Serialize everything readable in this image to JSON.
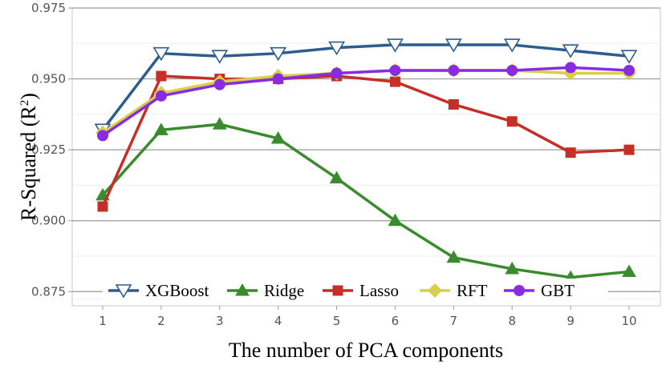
{
  "chart_data": {
    "type": "line",
    "title": "",
    "xlabel": "The number of PCA components",
    "ylabel_main": "R-Squared (R",
    "ylabel_sup": "2",
    "ylabel_close": ")",
    "x": [
      1,
      2,
      3,
      4,
      5,
      6,
      7,
      8,
      9,
      10
    ],
    "x_tick_labels": [
      "1",
      "2",
      "3",
      "4",
      "5",
      "6",
      "7",
      "8",
      "9",
      "10"
    ],
    "ylim": [
      0.87,
      0.975
    ],
    "y_ticks": [
      0.875,
      0.9,
      0.925,
      0.95,
      0.975
    ],
    "y_tick_labels": [
      "0.875",
      "0.900",
      "0.925",
      "0.950",
      "0.975"
    ],
    "grid": true,
    "legend_position": "bottom",
    "series": [
      {
        "name": "XGBoost",
        "color": "#2d5d8e",
        "marker": "triangle-down-open",
        "values": [
          0.932,
          0.959,
          0.958,
          0.959,
          0.961,
          0.962,
          0.962,
          0.962,
          0.96,
          0.958
        ]
      },
      {
        "name": "Ridge",
        "color": "#3a8a2e",
        "marker": "triangle-up",
        "values": [
          0.909,
          0.932,
          0.934,
          0.929,
          0.915,
          0.9,
          0.887,
          0.883,
          0.88,
          0.882
        ]
      },
      {
        "name": "Lasso",
        "color": "#c62f27",
        "marker": "square",
        "values": [
          0.905,
          0.951,
          0.95,
          0.95,
          0.951,
          0.949,
          0.941,
          0.935,
          0.924,
          0.925
        ]
      },
      {
        "name": "RFT",
        "color": "#d9cf48",
        "marker": "diamond",
        "values": [
          0.931,
          0.945,
          0.949,
          0.951,
          0.952,
          0.953,
          0.953,
          0.953,
          0.952,
          0.952
        ]
      },
      {
        "name": "GBT",
        "color": "#8a2be2",
        "marker": "circle",
        "values": [
          0.93,
          0.944,
          0.948,
          0.95,
          0.952,
          0.953,
          0.953,
          0.953,
          0.954,
          0.953
        ]
      }
    ]
  }
}
